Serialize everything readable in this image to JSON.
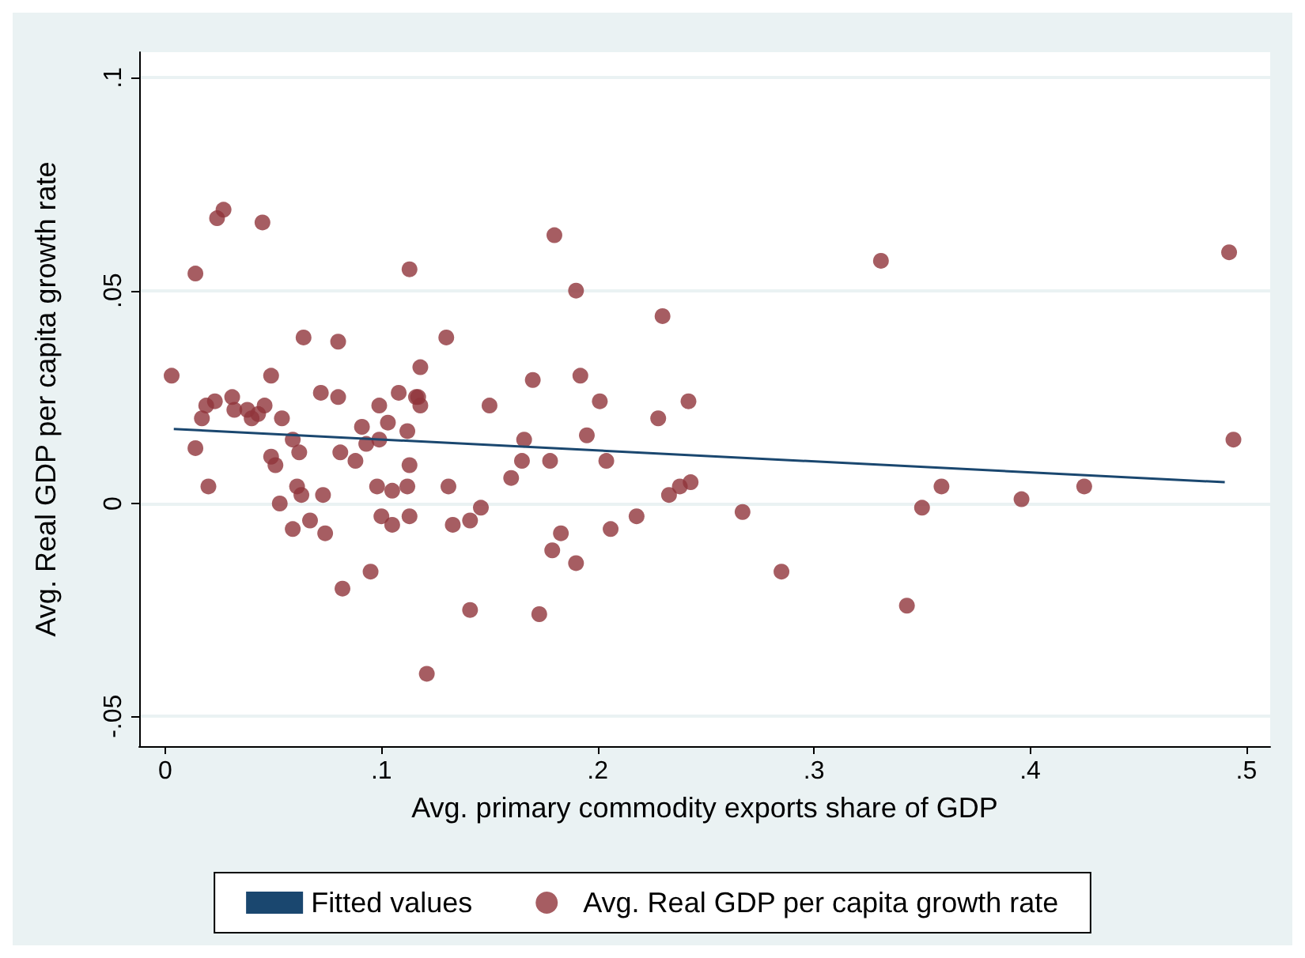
{
  "chart_data": {
    "type": "scatter",
    "xlabel": "Avg. primary commodity exports share of GDP",
    "ylabel": "Avg. Real GDP per capita growth rate",
    "xlim": [
      -0.012,
      0.511
    ],
    "ylim": [
      -0.057,
      0.106
    ],
    "xticks": [
      {
        "value": 0,
        "label": "0"
      },
      {
        "value": 0.1,
        "label": ".1"
      },
      {
        "value": 0.2,
        "label": ".2"
      },
      {
        "value": 0.3,
        "label": ".3"
      },
      {
        "value": 0.4,
        "label": ".4"
      },
      {
        "value": 0.5,
        "label": ".5"
      }
    ],
    "yticks": [
      {
        "value": -0.05,
        "label": "-.05"
      },
      {
        "value": 0,
        "label": "0"
      },
      {
        "value": 0.05,
        "label": ".05"
      },
      {
        "value": 0.1,
        "label": ".1"
      }
    ],
    "grid": "y",
    "legend": "bottom",
    "series": [
      {
        "name": "Fitted values",
        "type": "line",
        "color": "#1a476f",
        "marker": "none",
        "line_style": "solid",
        "x": [
          0.004,
          0.49
        ],
        "values": [
          0.0175,
          0.005
        ]
      },
      {
        "name": "Avg. Real GDP per capita growth rate",
        "color": "#90353b",
        "marker": "circle",
        "x": [
          0.003,
          0.014,
          0.02,
          0.017,
          0.019,
          0.023,
          0.031,
          0.032,
          0.038,
          0.04,
          0.043,
          0.046,
          0.072,
          0.08,
          0.108,
          0.014,
          0.024,
          0.027,
          0.045,
          0.113,
          0.112,
          0.113,
          0.112,
          0.113,
          0.116,
          0.049,
          0.051,
          0.049,
          0.054,
          0.053,
          0.059,
          0.062,
          0.061,
          0.063,
          0.073,
          0.067,
          0.074,
          0.059,
          0.082,
          0.095,
          0.064,
          0.08,
          0.081,
          0.091,
          0.093,
          0.099,
          0.103,
          0.099,
          0.088,
          0.098,
          0.105,
          0.1,
          0.105,
          0.18,
          0.19,
          0.23,
          0.13,
          0.118,
          0.192,
          0.17,
          0.117,
          0.118,
          0.15,
          0.201,
          0.228,
          0.195,
          0.166,
          0.165,
          0.178,
          0.204,
          0.16,
          0.131,
          0.233,
          0.146,
          0.141,
          0.133,
          0.183,
          0.206,
          0.218,
          0.179,
          0.19,
          0.141,
          0.173,
          0.121,
          0.331,
          0.492,
          0.242,
          0.494,
          0.238,
          0.243,
          0.267,
          0.285,
          0.35,
          0.359,
          0.343,
          0.396,
          0.425
        ],
        "values": [
          0.03,
          0.013,
          0.004,
          0.02,
          0.023,
          0.024,
          0.025,
          0.022,
          0.022,
          0.02,
          0.021,
          0.023,
          0.026,
          0.025,
          0.026,
          0.054,
          0.067,
          0.069,
          0.066,
          0.055,
          0.017,
          0.009,
          0.004,
          -0.003,
          0.025,
          0.03,
          0.009,
          0.011,
          0.02,
          0.0,
          0.015,
          0.012,
          0.004,
          0.002,
          0.002,
          -0.004,
          -0.007,
          -0.006,
          -0.02,
          -0.016,
          0.039,
          0.038,
          0.012,
          0.018,
          0.014,
          0.015,
          0.019,
          0.023,
          0.01,
          0.004,
          0.003,
          -0.003,
          -0.005,
          0.063,
          0.05,
          0.044,
          0.039,
          0.032,
          0.03,
          0.029,
          0.025,
          0.023,
          0.023,
          0.024,
          0.02,
          0.016,
          0.015,
          0.01,
          0.01,
          0.01,
          0.006,
          0.004,
          0.002,
          -0.001,
          -0.004,
          -0.005,
          -0.007,
          -0.006,
          -0.003,
          -0.011,
          -0.014,
          -0.025,
          -0.026,
          -0.04,
          0.057,
          0.059,
          0.024,
          0.015,
          0.004,
          0.005,
          -0.002,
          -0.016,
          -0.001,
          0.004,
          -0.024,
          0.001,
          0.004
        ]
      }
    ]
  }
}
